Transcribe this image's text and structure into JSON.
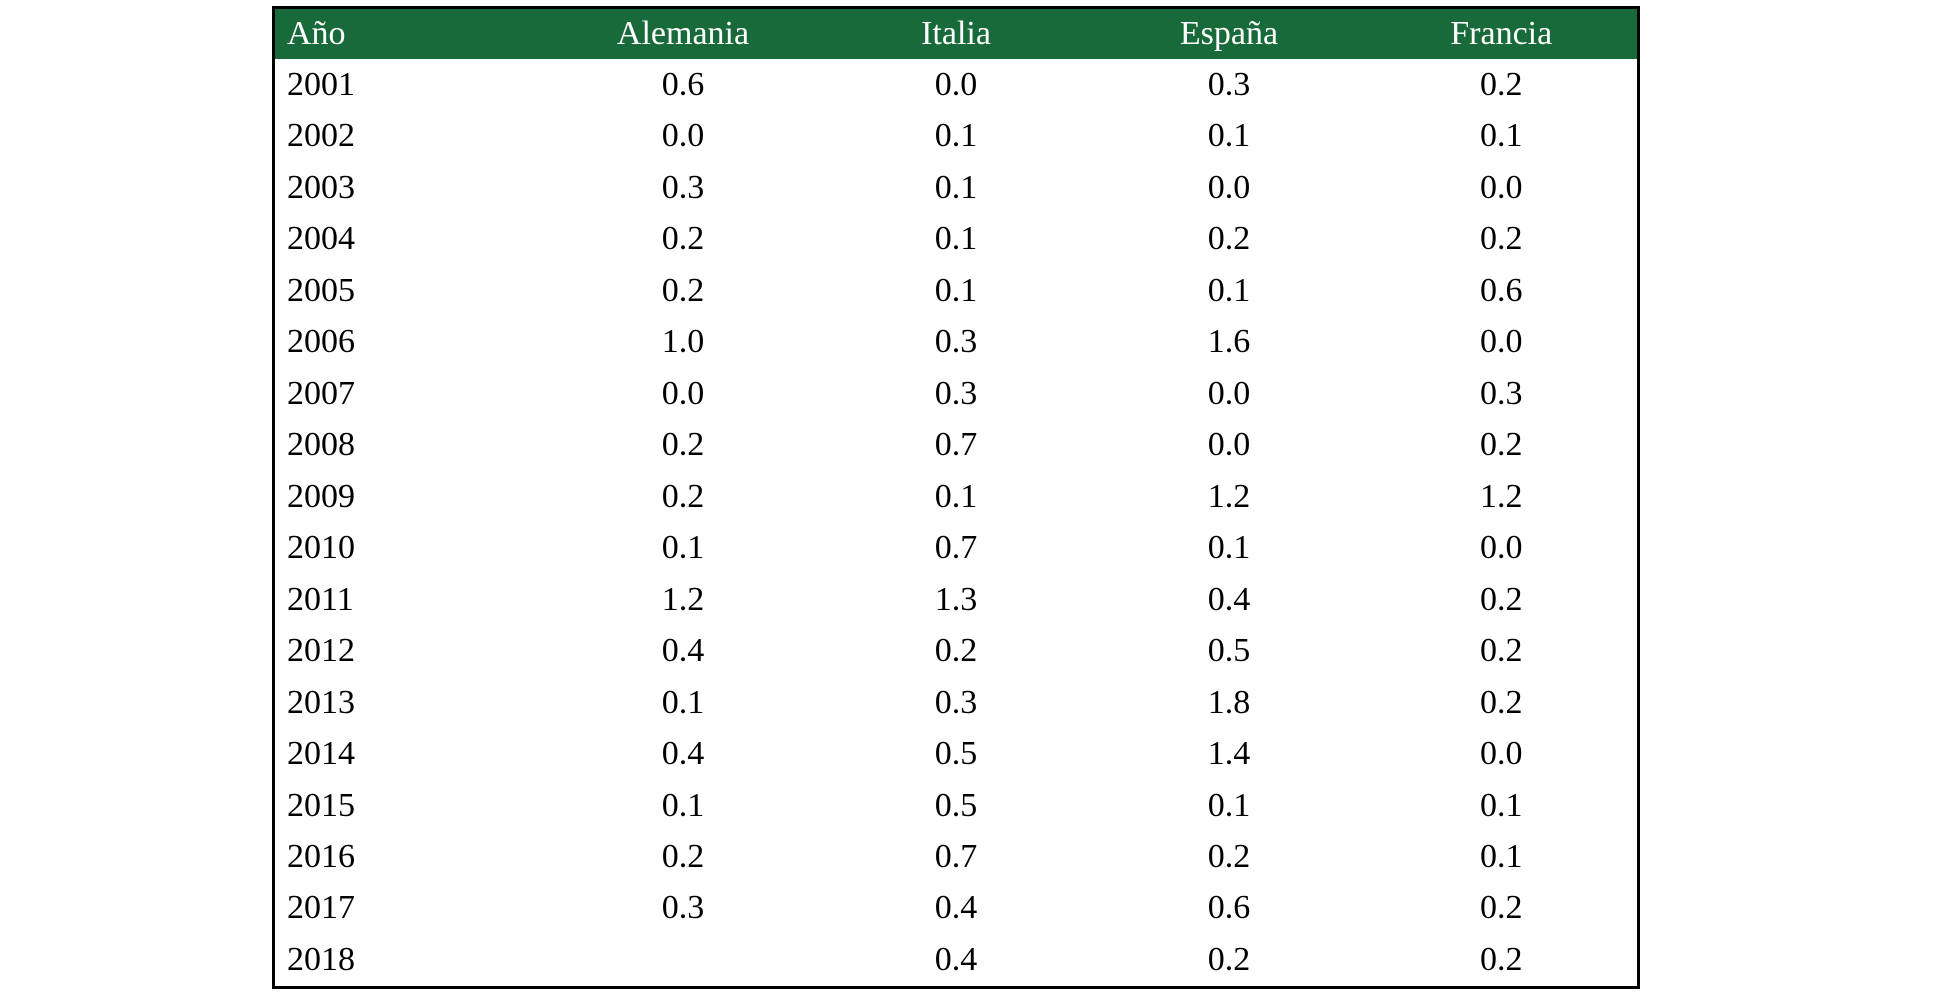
{
  "colors": {
    "header_bg": "#186a3b",
    "header_text": "#ffffff",
    "border": "#000000",
    "body_text": "#000000"
  },
  "chart_data": {
    "type": "table",
    "title": "",
    "columns": [
      "Año",
      "Alemania",
      "Italia",
      "España",
      "Francia"
    ],
    "rows": [
      [
        "2001",
        "0.6",
        "0.0",
        "0.3",
        "0.2"
      ],
      [
        "2002",
        "0.0",
        "0.1",
        "0.1",
        "0.1"
      ],
      [
        "2003",
        "0.3",
        "0.1",
        "0.0",
        "0.0"
      ],
      [
        "2004",
        "0.2",
        "0.1",
        "0.2",
        "0.2"
      ],
      [
        "2005",
        "0.2",
        "0.1",
        "0.1",
        "0.6"
      ],
      [
        "2006",
        "1.0",
        "0.3",
        "1.6",
        "0.0"
      ],
      [
        "2007",
        "0.0",
        "0.3",
        "0.0",
        "0.3"
      ],
      [
        "2008",
        "0.2",
        "0.7",
        "0.0",
        "0.2"
      ],
      [
        "2009",
        "0.2",
        "0.1",
        "1.2",
        "1.2"
      ],
      [
        "2010",
        "0.1",
        "0.7",
        "0.1",
        "0.0"
      ],
      [
        "2011",
        "1.2",
        "1.3",
        "0.4",
        "0.2"
      ],
      [
        "2012",
        "0.4",
        "0.2",
        "0.5",
        "0.2"
      ],
      [
        "2013",
        "0.1",
        "0.3",
        "1.8",
        "0.2"
      ],
      [
        "2014",
        "0.4",
        "0.5",
        "1.4",
        "0.0"
      ],
      [
        "2015",
        "0.1",
        "0.5",
        "0.1",
        "0.1"
      ],
      [
        "2016",
        "0.2",
        "0.7",
        "0.2",
        "0.1"
      ],
      [
        "2017",
        "0.3",
        "0.4",
        "0.6",
        "0.2"
      ],
      [
        "2018",
        "",
        "0.4",
        "0.2",
        "0.2"
      ]
    ]
  }
}
